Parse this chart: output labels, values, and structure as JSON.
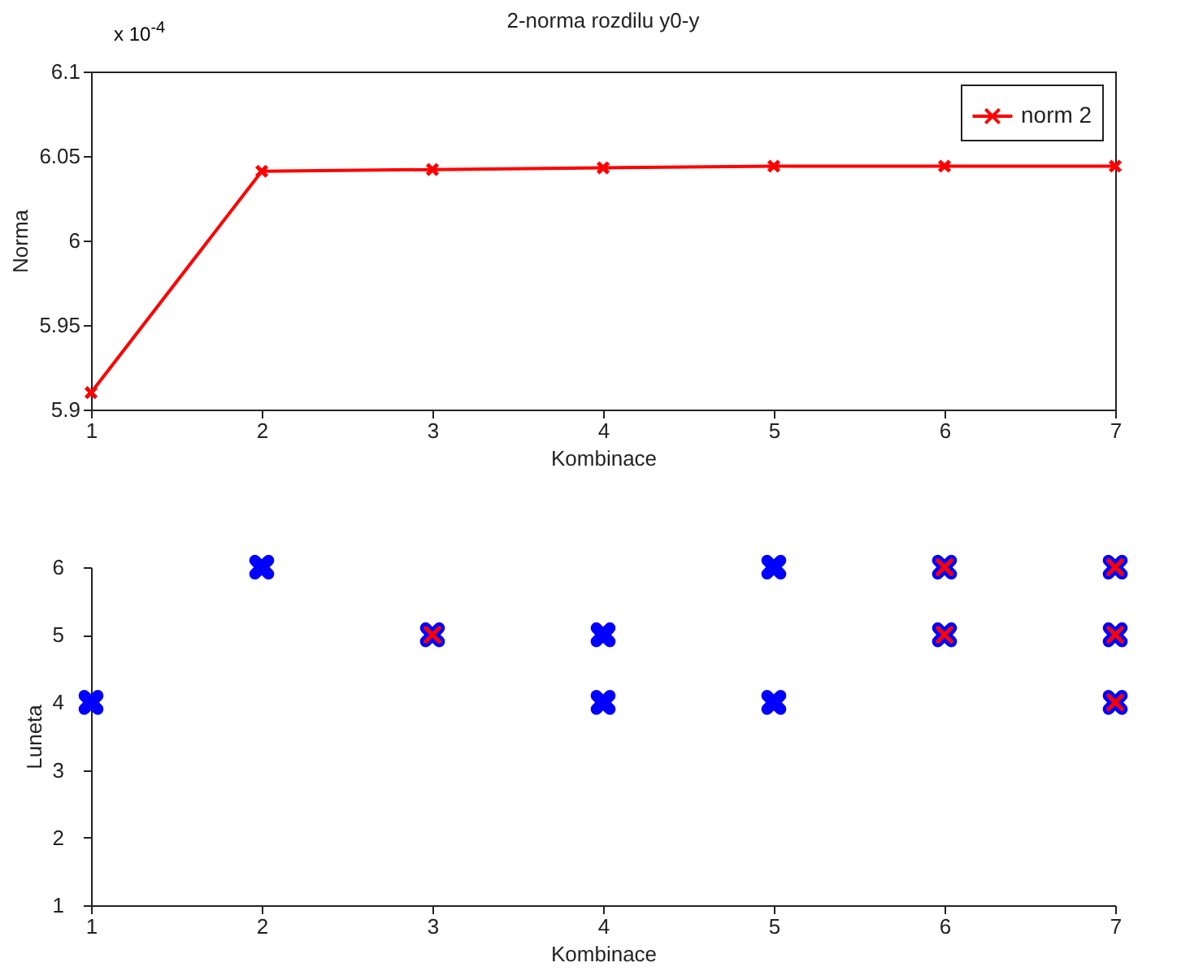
{
  "chart_data": [
    {
      "type": "line",
      "title": "2-norma rozdilu y0-y",
      "xlabel": "Kombinace",
      "ylabel": "Norma",
      "annotations": [
        "x 10$^{-4}$"
      ],
      "x": [
        1,
        2,
        3,
        4,
        5,
        6,
        7
      ],
      "series": [
        {
          "name": "norm 2",
          "color": "#ff0000",
          "values": [
            5.91,
            6.041,
            6.042,
            6.043,
            6.044,
            6.044,
            6.044
          ]
        }
      ],
      "xlim": [
        1,
        7
      ],
      "xticks": [
        1,
        2,
        3,
        4,
        5,
        6,
        7
      ],
      "ylim": [
        5.9,
        6.1
      ],
      "yticks": [
        5.9,
        5.95,
        6,
        6.05,
        6.1
      ],
      "marker": "cross",
      "legend": "top right",
      "grid": false
    },
    {
      "type": "scatter",
      "xlabel": "Kombinace",
      "ylabel": "Luneta",
      "series": [
        {
          "color": "#0000ff",
          "x": [
            1,
            2,
            3,
            4,
            4,
            5,
            5,
            6,
            6,
            7,
            7,
            7
          ],
          "values": [
            4,
            6,
            5,
            5,
            4,
            6,
            4,
            6,
            5,
            6,
            5,
            4
          ]
        },
        {
          "color": "#ff0000",
          "x": [
            3,
            6,
            6,
            7,
            7,
            7
          ],
          "values": [
            5,
            6,
            5,
            6,
            5,
            4
          ]
        }
      ],
      "xlim": [
        1,
        7
      ],
      "xticks": [
        1,
        2,
        3,
        4,
        5,
        6,
        7
      ],
      "ylim": [
        1,
        6
      ],
      "yticks": [
        1,
        2,
        3,
        4,
        5,
        6
      ],
      "marker": "cross",
      "grid": false
    }
  ]
}
